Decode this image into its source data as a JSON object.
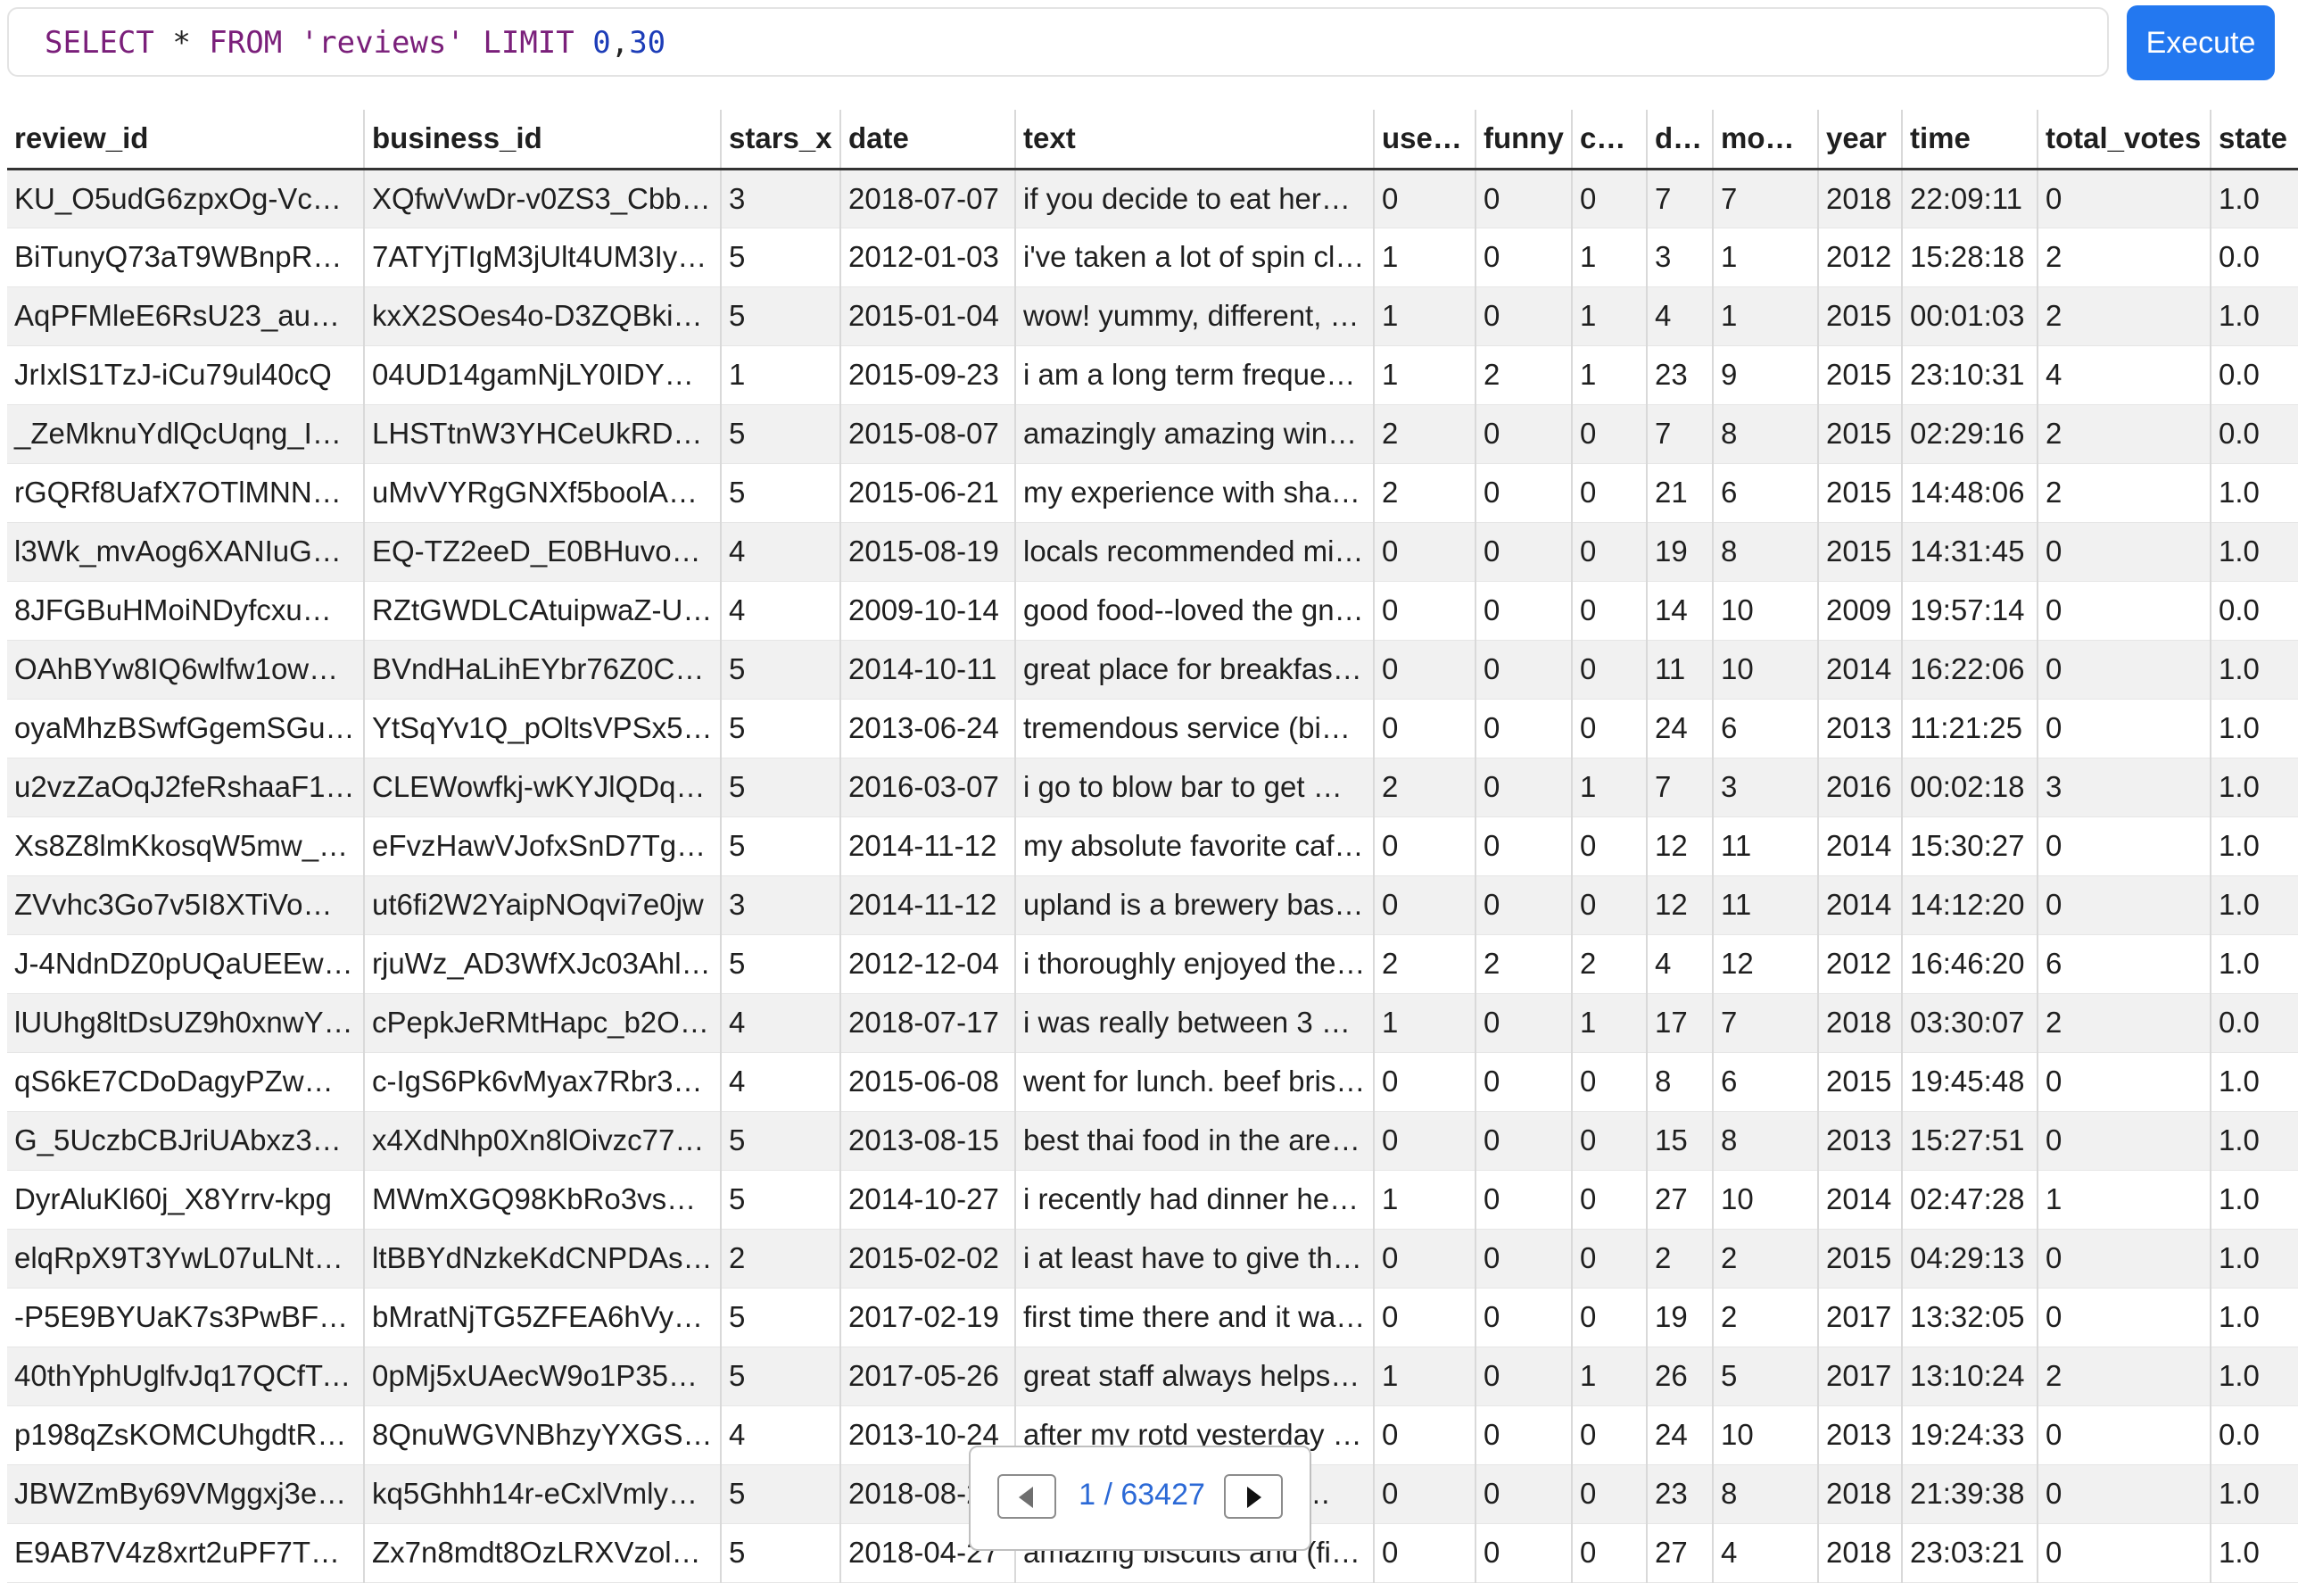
{
  "query": {
    "select": "SELECT",
    "star": "*",
    "from": "FROM",
    "table": "'reviews'",
    "limit": "LIMIT",
    "offset": "0",
    "comma": ",",
    "count": "30"
  },
  "execute_label": "Execute",
  "columns": [
    "review_id",
    "business_id",
    "stars_x",
    "date",
    "text",
    "useful",
    "funny",
    "cool",
    "day",
    "month",
    "year",
    "time",
    "total_votes",
    "state"
  ],
  "rows": [
    [
      "KU_O5udG6zpxOg-VcA…",
      "XQfwVwDr-v0ZS3_Cbb…",
      "3",
      "2018-07-07",
      "if you decide to eat here…",
      "0",
      "0",
      "0",
      "7",
      "7",
      "2018",
      "22:09:11",
      "0",
      "1.0"
    ],
    [
      "BiTunyQ73aT9WBnpR9…",
      "7ATYjTIgM3jUlt4UM3IypQ",
      "5",
      "2012-01-03",
      "i've taken a lot of spin cl…",
      "1",
      "0",
      "1",
      "3",
      "1",
      "2012",
      "15:28:18",
      "2",
      "0.0"
    ],
    [
      "AqPFMleE6RsU23_auES…",
      "kxX2SOes4o-D3ZQBki…",
      "5",
      "2015-01-04",
      "wow! yummy, different, …",
      "1",
      "0",
      "1",
      "4",
      "1",
      "2015",
      "00:01:03",
      "2",
      "1.0"
    ],
    [
      "JrIxlS1TzJ-iCu79ul40cQ",
      "04UD14gamNjLY0IDYVh…",
      "1",
      "2015-09-23",
      "i am a long term frequen…",
      "1",
      "2",
      "1",
      "23",
      "9",
      "2015",
      "23:10:31",
      "4",
      "0.0"
    ],
    [
      "_ZeMknuYdlQcUqng_Im…",
      "LHSTtnW3YHCeUkRDG…",
      "5",
      "2015-08-07",
      "amazingly amazing wing…",
      "2",
      "0",
      "0",
      "7",
      "8",
      "2015",
      "02:29:16",
      "2",
      "0.0"
    ],
    [
      "rGQRf8UafX7OTlMNN1…",
      "uMvVYRgGNXf5boolA9…",
      "5",
      "2015-06-21",
      "my experience with shali…",
      "2",
      "0",
      "0",
      "21",
      "6",
      "2015",
      "14:48:06",
      "2",
      "1.0"
    ],
    [
      "l3Wk_mvAog6XANIuGQ…",
      "EQ-TZ2eeD_E0BHuvoae…",
      "4",
      "2015-08-19",
      "locals recommended mil…",
      "0",
      "0",
      "0",
      "19",
      "8",
      "2015",
      "14:31:45",
      "0",
      "1.0"
    ],
    [
      "8JFGBuHMoiNDyfcxuW…",
      "RZtGWDLCAtuipwaZ-Ufj…",
      "4",
      "2009-10-14",
      "good food--loved the gn…",
      "0",
      "0",
      "0",
      "14",
      "10",
      "2009",
      "19:57:14",
      "0",
      "0.0"
    ],
    [
      "OAhBYw8IQ6wlfw1owX…",
      "BVndHaLihEYbr76Z0CM…",
      "5",
      "2014-10-11",
      "great place for breakfast…",
      "0",
      "0",
      "0",
      "11",
      "10",
      "2014",
      "16:22:06",
      "0",
      "1.0"
    ],
    [
      "oyaMhzBSwfGgemSGuZ…",
      "YtSqYv1Q_pOltsVPSx54…",
      "5",
      "2013-06-24",
      "tremendous service (big…",
      "0",
      "0",
      "0",
      "24",
      "6",
      "2013",
      "11:21:25",
      "0",
      "1.0"
    ],
    [
      "u2vzZaOqJ2feRshaaF1d…",
      "CLEWowfkj-wKYJlQDqT…",
      "5",
      "2016-03-07",
      "i go to blow bar to get m…",
      "2",
      "0",
      "1",
      "7",
      "3",
      "2016",
      "00:02:18",
      "3",
      "1.0"
    ],
    [
      "Xs8Z8lmKkosqW5mw_s…",
      "eFvzHawVJofxSnD7Tgb…",
      "5",
      "2014-11-12",
      "my absolute favorite caf…",
      "0",
      "0",
      "0",
      "12",
      "11",
      "2014",
      "15:30:27",
      "0",
      "1.0"
    ],
    [
      "ZVvhc3Go7v5I8XTiVoW…",
      "ut6fi2W2YaipNOqvi7e0jw",
      "3",
      "2014-11-12",
      "upland is a brewery bas…",
      "0",
      "0",
      "0",
      "12",
      "11",
      "2014",
      "14:12:20",
      "0",
      "1.0"
    ],
    [
      "J-4NdnDZ0pUQaUEEw…",
      "rjuWz_AD3WfXJc03Ahl…",
      "5",
      "2012-12-04",
      "i thoroughly enjoyed the…",
      "2",
      "2",
      "2",
      "4",
      "12",
      "2012",
      "16:46:20",
      "6",
      "1.0"
    ],
    [
      "lUUhg8ltDsUZ9h0xnwY…",
      "cPepkJeRMtHapc_b2Oe…",
      "4",
      "2018-07-17",
      "i was really between 3 a…",
      "1",
      "0",
      "1",
      "17",
      "7",
      "2018",
      "03:30:07",
      "2",
      "0.0"
    ],
    [
      "qS6kE7CDoDagyPZwm…",
      "c-IgS6Pk6vMyax7Rbr38…",
      "4",
      "2015-06-08",
      "went for lunch. beef bris…",
      "0",
      "0",
      "0",
      "8",
      "6",
      "2015",
      "19:45:48",
      "0",
      "1.0"
    ],
    [
      "G_5UczbCBJriUAbxz3J…",
      "x4XdNhp0Xn8lOivzc77J…",
      "5",
      "2013-08-15",
      "best thai food in the are…",
      "0",
      "0",
      "0",
      "15",
      "8",
      "2013",
      "15:27:51",
      "0",
      "1.0"
    ],
    [
      "DyrAluKl60j_X8Yrrv-kpg",
      "MWmXGQ98KbRo3vsS…",
      "5",
      "2014-10-27",
      "i recently had dinner her…",
      "1",
      "0",
      "0",
      "27",
      "10",
      "2014",
      "02:47:28",
      "1",
      "1.0"
    ],
    [
      "elqRpX9T3YwL07uLNtN…",
      "ltBBYdNzkeKdCNPDAsx…",
      "2",
      "2015-02-02",
      "i at least have to give thi…",
      "0",
      "0",
      "0",
      "2",
      "2",
      "2015",
      "04:29:13",
      "0",
      "1.0"
    ],
    [
      "-P5E9BYUaK7s3PwBF5…",
      "bMratNjTG5ZFEA6hVyr-…",
      "5",
      "2017-02-19",
      "first time there and it wa…",
      "0",
      "0",
      "0",
      "19",
      "2",
      "2017",
      "13:32:05",
      "0",
      "1.0"
    ],
    [
      "40thYphUglfvJq17QCfTwA",
      "0pMj5xUAecW9o1P35B…",
      "5",
      "2017-05-26",
      "great staff always helps …",
      "1",
      "0",
      "1",
      "26",
      "5",
      "2017",
      "13:10:24",
      "2",
      "1.0"
    ],
    [
      "p198qZsKOMCUhgdtR…",
      "8QnuWGVNBhzyYXGSe…",
      "4",
      "2013-10-24",
      "after my rotd yesterday …",
      "0",
      "0",
      "0",
      "24",
      "10",
      "2013",
      "19:24:33",
      "0",
      "0.0"
    ],
    [
      "JBWZmBy69VMggxj3eY…",
      "kq5Ghhh14r-eCxlVmlyd…",
      "5",
      "2018-08-23",
      "I really liked the food …",
      "0",
      "0",
      "0",
      "23",
      "8",
      "2018",
      "21:39:38",
      "0",
      "1.0"
    ],
    [
      "E9AB7V4z8xrt2uPF7T5…",
      "Zx7n8mdt8OzLRXVzolX…",
      "5",
      "2018-04-27",
      "amazing biscuits and (fil…",
      "0",
      "0",
      "0",
      "27",
      "4",
      "2018",
      "23:03:21",
      "0",
      "1.0"
    ]
  ],
  "pager": {
    "label": "1 / 63427",
    "prev_icon": "chevron-left-icon",
    "next_icon": "chevron-right-icon"
  }
}
